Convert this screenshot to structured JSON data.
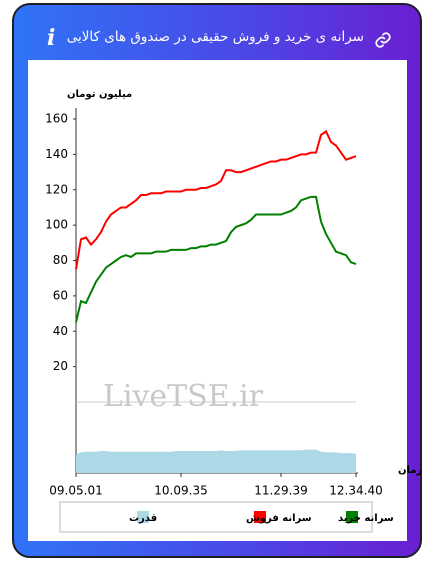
{
  "header": {
    "title": "سرانه ی خرید و فروش حقیقی در صندوق های کالایی",
    "info_label": "i"
  },
  "chart_data": {
    "type": "line",
    "y_label": "میلیون تومان",
    "x_label": "زمان",
    "watermark": "LiveTSE.ir",
    "categories": [
      "09.05.01",
      null,
      null,
      null,
      null,
      null,
      null,
      null,
      null,
      null,
      null,
      null,
      null,
      null,
      null,
      null,
      null,
      null,
      null,
      null,
      null,
      "10.09.35",
      null,
      null,
      null,
      null,
      null,
      null,
      null,
      null,
      null,
      null,
      null,
      null,
      null,
      null,
      null,
      null,
      null,
      null,
      null,
      "11.29.39",
      null,
      null,
      null,
      null,
      null,
      null,
      null,
      null,
      null,
      null,
      null,
      null,
      null,
      null,
      "12.34.40"
    ],
    "ylim": [
      0,
      160
    ],
    "yticks": [
      20,
      40,
      60,
      80,
      100,
      120,
      140,
      160
    ],
    "y2lim": [
      0,
      10
    ],
    "series": [
      {
        "name": "سرانه خرید",
        "color": "#008000",
        "values": [
          45,
          57,
          56,
          62,
          68,
          72,
          76,
          78,
          80,
          82,
          83,
          82,
          84,
          84,
          84,
          84,
          85,
          85,
          85,
          86,
          86,
          86,
          86,
          87,
          87,
          88,
          88,
          89,
          89,
          90,
          91,
          96,
          99,
          100,
          101,
          103,
          106,
          106,
          106,
          106,
          106,
          106,
          107,
          108,
          110,
          114,
          115,
          116,
          116,
          102,
          95,
          90,
          85,
          84,
          83,
          79,
          78
        ]
      },
      {
        "name": "سرانه فروش",
        "color": "#ff0000",
        "values": [
          75,
          92,
          93,
          89,
          92,
          96,
          102,
          106,
          108,
          110,
          110,
          112,
          114,
          117,
          117,
          118,
          118,
          118,
          119,
          119,
          119,
          119,
          120,
          120,
          120,
          121,
          121,
          122,
          123,
          125,
          131,
          131,
          130,
          130,
          131,
          132,
          133,
          134,
          135,
          136,
          136,
          137,
          137,
          138,
          139,
          140,
          140,
          141,
          141,
          151,
          153,
          147,
          145,
          141,
          137,
          138,
          139
        ]
      },
      {
        "name": "قدرت",
        "color": "#add8e6",
        "axis": "y2",
        "values": [
          2.6,
          2.9,
          3.0,
          3.0,
          3.0,
          3.1,
          3.1,
          3.0,
          3.0,
          3.0,
          3.0,
          3.0,
          3.0,
          3.0,
          3.0,
          3.0,
          3.0,
          3.0,
          3.0,
          3.0,
          3.1,
          3.1,
          3.1,
          3.1,
          3.1,
          3.1,
          3.1,
          3.1,
          3.1,
          3.2,
          3.1,
          3.1,
          3.1,
          3.2,
          3.2,
          3.2,
          3.2,
          3.2,
          3.2,
          3.2,
          3.2,
          3.2,
          3.2,
          3.2,
          3.2,
          3.2,
          3.3,
          3.3,
          3.3,
          3.0,
          2.9,
          2.9,
          2.9,
          2.8,
          2.8,
          2.8,
          2.7
        ]
      }
    ]
  }
}
